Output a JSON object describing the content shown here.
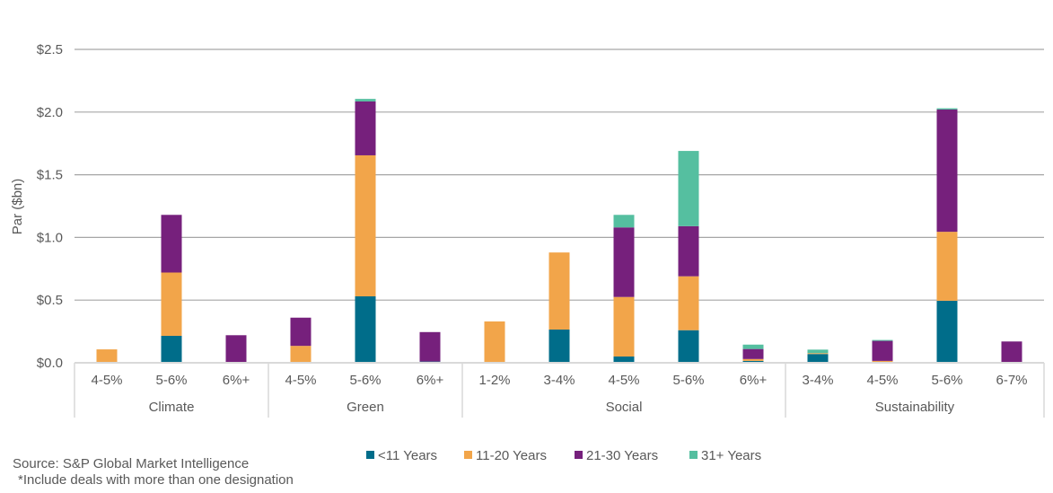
{
  "chart_data": {
    "type": "bar",
    "stacked": true,
    "ylabel": "Par ($bn)",
    "ylim": [
      0,
      2.5
    ],
    "yticks": [
      "$0.0",
      "$0.5",
      "$1.0",
      "$1.5",
      "$2.0",
      "$2.5"
    ],
    "grid": true,
    "legend_position": "bottom",
    "groups": [
      {
        "name": "Climate",
        "categories": [
          "4-5%",
          "5-6%",
          "6%+"
        ]
      },
      {
        "name": "Green",
        "categories": [
          "4-5%",
          "5-6%",
          "6%+"
        ]
      },
      {
        "name": "Social",
        "categories": [
          "1-2%",
          "3-4%",
          "4-5%",
          "5-6%",
          "6%+"
        ]
      },
      {
        "name": "Sustainability",
        "categories": [
          "3-4%",
          "4-5%",
          "5-6%",
          "6-7%"
        ]
      }
    ],
    "series": [
      {
        "name": "<11 Years",
        "color": "#006D8A",
        "values": [
          0,
          0.215,
          0,
          0,
          0.53,
          0.01,
          0,
          0.265,
          0.05,
          0.26,
          0.015,
          0.07,
          0,
          0.495,
          0
        ]
      },
      {
        "name": "11-20 Years",
        "color": "#F2A54A",
        "values": [
          0.107,
          0.505,
          0,
          0.135,
          1.125,
          0,
          0.33,
          0.615,
          0.475,
          0.43,
          0.015,
          0.007,
          0.015,
          0.55,
          0
        ]
      },
      {
        "name": "21-30 Years",
        "color": "#76207C",
        "values": [
          0,
          0.46,
          0.22,
          0.225,
          0.43,
          0.235,
          0,
          0,
          0.555,
          0.4,
          0.08,
          0,
          0.16,
          0.975,
          0.17
        ]
      },
      {
        "name": "31+ Years",
        "color": "#55BFA0",
        "values": [
          0,
          0,
          0,
          0,
          0.02,
          0,
          0,
          0,
          0.1,
          0.6,
          0.035,
          0.028,
          0.007,
          0.01,
          0
        ]
      }
    ]
  },
  "footer": {
    "source": "Source: S&P Global Market Intelligence",
    "note": "*Include deals with more than one designation"
  }
}
